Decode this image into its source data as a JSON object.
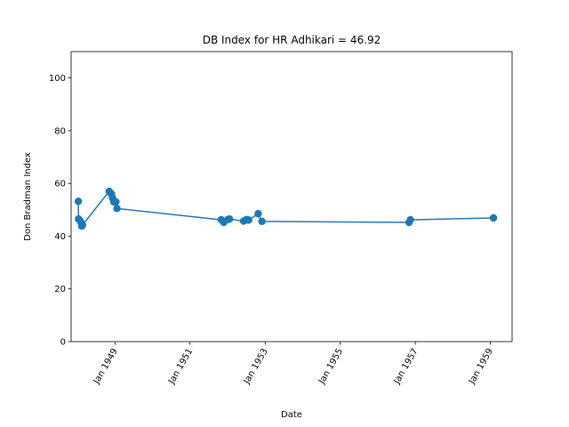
{
  "chart_data": {
    "type": "line",
    "title": "DB Index for HR Adhikari = 46.92",
    "xlabel": "Date",
    "ylabel": "Don Bradman Index",
    "xlim": [
      "1947-11-01",
      "1959-08-01"
    ],
    "ylim": [
      0,
      110
    ],
    "yticks": [
      0,
      20,
      40,
      60,
      80,
      100
    ],
    "xticks": [
      {
        "date": "1949-01-01",
        "label": "Jan 1949"
      },
      {
        "date": "1951-01-01",
        "label": "Jan 1951"
      },
      {
        "date": "1953-01-01",
        "label": "Jan 1953"
      },
      {
        "date": "1955-01-01",
        "label": "Jan 1955"
      },
      {
        "date": "1957-01-01",
        "label": "Jan 1957"
      },
      {
        "date": "1959-01-01",
        "label": "Jan 1959"
      }
    ],
    "grid": false,
    "color": "#1f77b4",
    "series": [
      {
        "x": [
          "1948-01-10",
          "1948-01-12",
          "1948-01-25",
          "1948-02-05",
          "1948-02-12",
          "1948-02-20",
          "1948-11-05",
          "1948-11-15",
          "1948-11-28",
          "1948-12-08",
          "1948-12-20",
          "1949-01-10",
          "1949-01-20",
          "1951-11-01",
          "1951-11-25",
          "1952-01-05",
          "1952-01-20",
          "1952-06-05",
          "1952-06-20",
          "1952-07-05",
          "1952-07-25",
          "1952-10-25",
          "1952-12-01",
          "1956-11-01",
          "1956-11-15",
          "1959-02-01"
        ],
        "y": [
          53.2,
          46.5,
          46.0,
          45.2,
          43.8,
          44.2,
          57.0,
          56.5,
          56.0,
          54.5,
          53.0,
          53.0,
          50.5,
          46.2,
          45.2,
          46.3,
          46.5,
          45.7,
          46.0,
          46.3,
          46.1,
          48.5,
          45.6,
          45.2,
          46.2,
          46.9
        ]
      }
    ]
  }
}
